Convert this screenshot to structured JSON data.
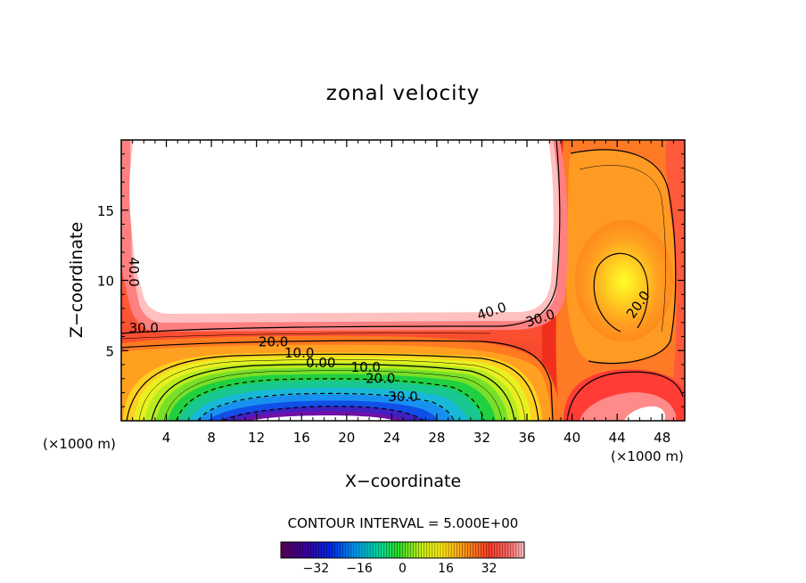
{
  "chart_data": {
    "type": "contour",
    "title": "zonal velocity",
    "xlabel": "X−coordinate",
    "ylabel": "Z−coordinate",
    "x_unit": "(×1000 m)",
    "z_unit": "(×1000 m)",
    "xlim": [
      0,
      50
    ],
    "ylim": [
      0,
      20
    ],
    "x_ticks": [
      4,
      8,
      12,
      16,
      20,
      24,
      28,
      32,
      36,
      40,
      44,
      48
    ],
    "y_ticks": [
      5,
      10,
      15
    ],
    "contour_interval_text": "CONTOUR INTERVAL = 5.000E+00",
    "contour_labels": [
      {
        "text": "40.0",
        "x": 0.7,
        "z": 10.6
      },
      {
        "text": "30.0",
        "x": 2.0,
        "z": 6.3
      },
      {
        "text": "20.0",
        "x": 13.5,
        "z": 5.3
      },
      {
        "text": "10.0",
        "x": 15.8,
        "z": 4.5
      },
      {
        "text": "0.00",
        "x": 17.7,
        "z": 3.8
      },
      {
        "text": "10.0",
        "x": 21.7,
        "z": 3.5
      },
      {
        "text": "20.0",
        "x": 23.0,
        "z": 2.7
      },
      {
        "text": "30.0",
        "x": 25.0,
        "z": 1.4
      },
      {
        "text": "40.0",
        "x": 33.0,
        "z": 7.5
      },
      {
        "text": "30.0",
        "x": 37.3,
        "z": 7.0
      },
      {
        "text": "20.0",
        "x": 46.2,
        "z": 8.1
      }
    ],
    "colorbar": {
      "tick_labels": [
        "−32",
        "−16",
        "0",
        "16",
        "32"
      ],
      "tick_values": [
        -32,
        -16,
        0,
        16,
        32
      ],
      "range": [
        -45,
        45
      ]
    }
  }
}
